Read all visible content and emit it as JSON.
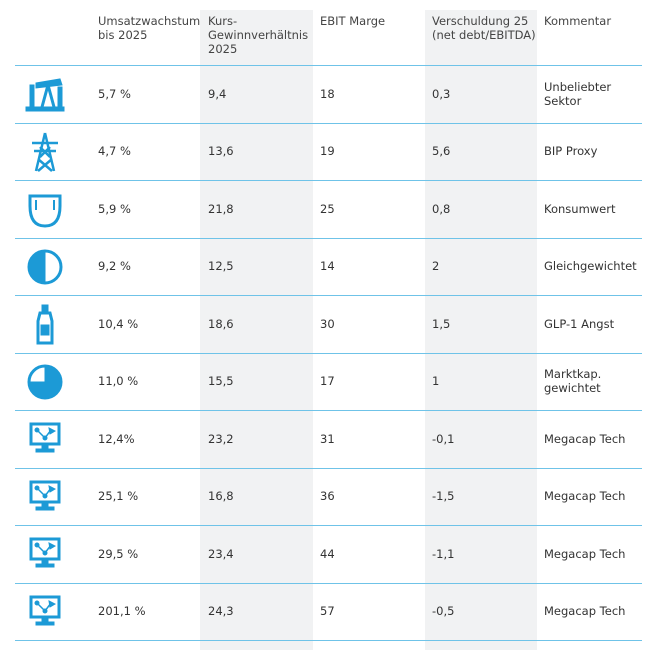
{
  "table": {
    "header": [
      "Umsatzwachstum bis 2025",
      "Kurs-Gewinnverhältnis 2025",
      "EBIT Marge",
      "Verschuldung 25 (net debt/EBITDA)",
      "Kommentar"
    ],
    "rows": [
      [
        "5,7 %",
        "9,4",
        "18",
        "0,3",
        "Unbeliebter Sektor"
      ],
      [
        "4,7 %",
        "13,6",
        "19",
        "5,6",
        "BIP Proxy"
      ],
      [
        "5,9 %",
        "21,8",
        "25",
        "0,8",
        "Konsumwert"
      ],
      [
        "9,2 %",
        "12,5",
        "14",
        "2",
        "Gleichgewichtet"
      ],
      [
        "10,4 %",
        "18,6",
        "30",
        "1,5",
        "GLP-1 Angst"
      ],
      [
        "11,0 %",
        "15,5",
        "17",
        "1",
        "Marktkap. gewichtet"
      ],
      [
        "12,4%",
        "23,2",
        "31",
        "-0,1",
        "Megacap Tech"
      ],
      [
        "25,1 %",
        "16,8",
        "36",
        "-1,5",
        "Megacap Tech"
      ],
      [
        "29,5 %",
        "23,4",
        "44",
        "-1,1",
        "Megacap Tech"
      ],
      [
        "201,1 %",
        "24,3",
        "57",
        "-0,5",
        "Megacap Tech"
      ]
    ]
  }
}
